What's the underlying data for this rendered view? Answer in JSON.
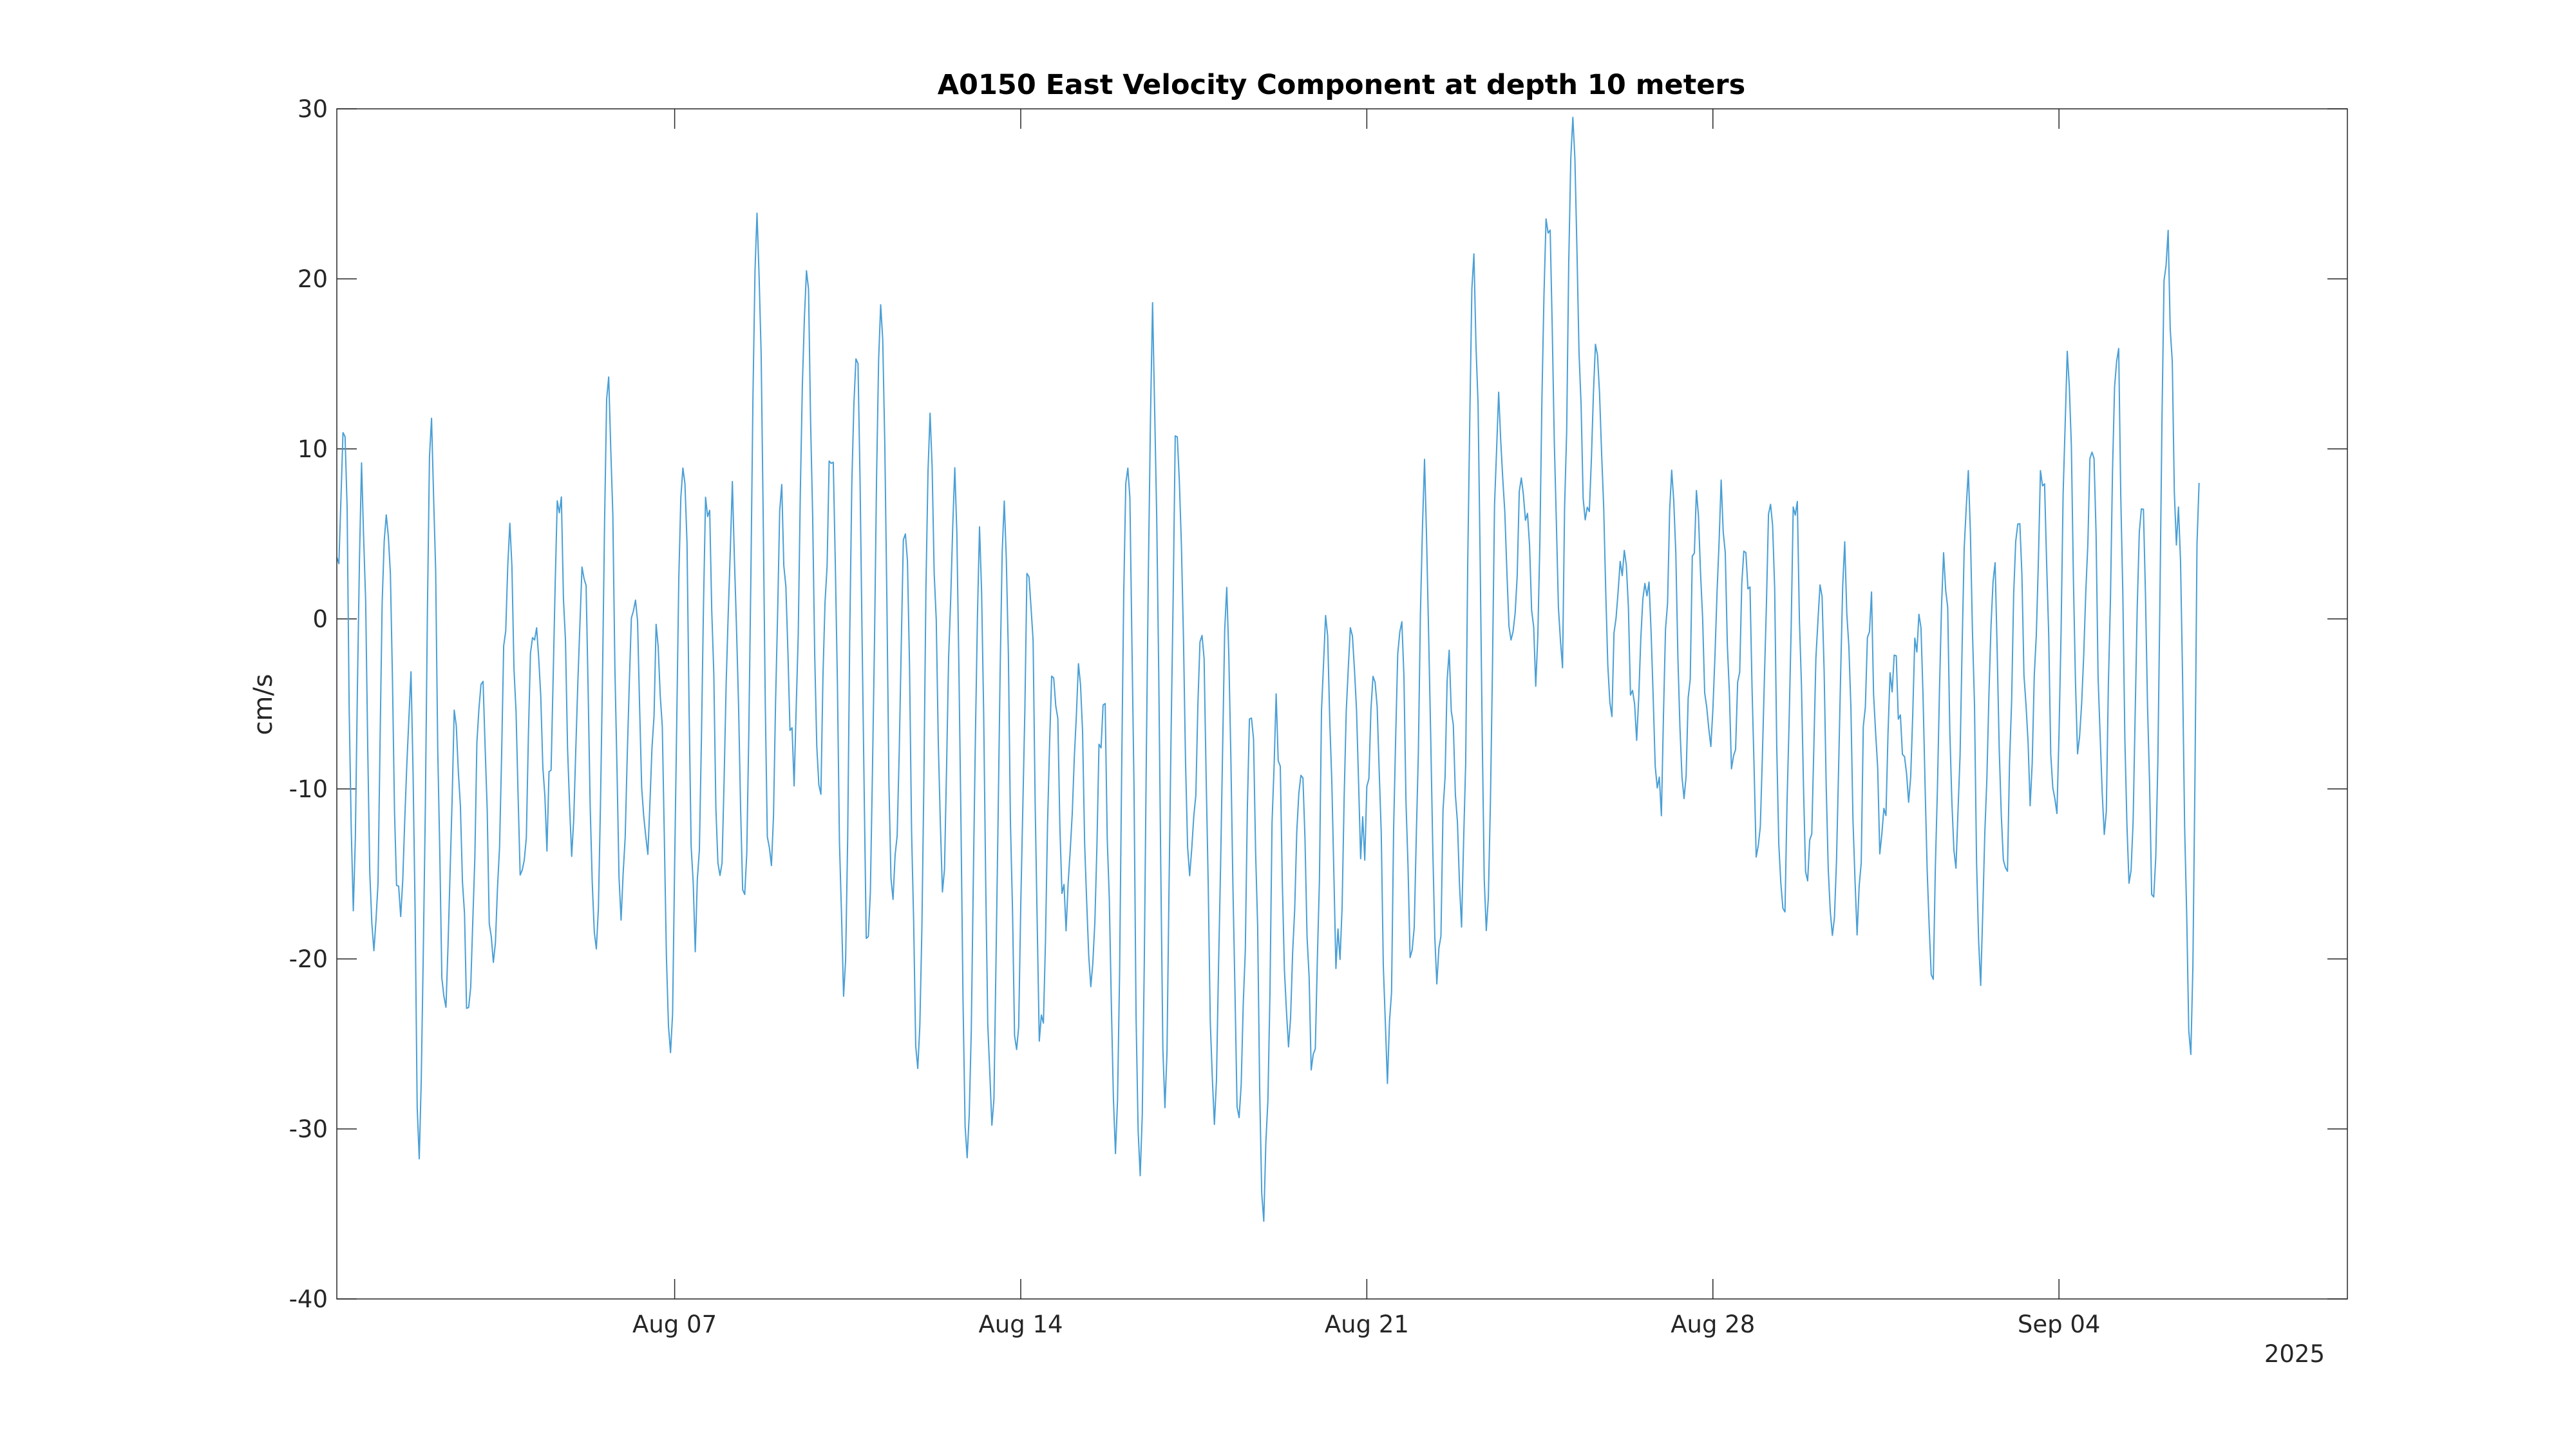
{
  "chart_data": {
    "type": "line",
    "title": "A0150 East Velocity Component at depth 10 meters",
    "xlabel": "",
    "ylabel": "cm/s",
    "x_range": [
      "2025-07-31T04:00",
      "2025-09-09T20:00"
    ],
    "ylim": [
      -40,
      30
    ],
    "y_ticks": [
      30,
      20,
      10,
      0,
      -10,
      -20,
      -30,
      -40
    ],
    "x_ticks": [
      {
        "date": "2025-08-07",
        "label": "Aug 07"
      },
      {
        "date": "2025-08-14",
        "label": "Aug 14"
      },
      {
        "date": "2025-08-21",
        "label": "Aug 21"
      },
      {
        "date": "2025-08-28",
        "label": "Aug 28"
      },
      {
        "date": "2025-09-04",
        "label": "Sep 04"
      }
    ],
    "x_year_label": "2025",
    "grid": false,
    "line_color": "#4a9fd6",
    "series": [
      {
        "name": "",
        "sampling": "hourly",
        "start": "2025-07-31T04:00",
        "keypoints": [
          [
            "2025-07-31T04:00",
            3
          ],
          [
            "2025-07-31T08:00",
            10
          ],
          [
            "2025-07-31T12:00",
            -18
          ],
          [
            "2025-07-31T16:00",
            8
          ],
          [
            "2025-07-31T22:00",
            -21
          ],
          [
            "2025-08-01T04:00",
            7
          ],
          [
            "2025-08-01T10:00",
            -17
          ],
          [
            "2025-08-01T16:00",
            -5
          ],
          [
            "2025-08-01T20:00",
            -31.5
          ],
          [
            "2025-08-02T02:00",
            11
          ],
          [
            "2025-08-02T08:00",
            -23
          ],
          [
            "2025-08-02T14:00",
            -6
          ],
          [
            "2025-08-02T20:00",
            -22
          ],
          [
            "2025-08-03T02:00",
            -4
          ],
          [
            "2025-08-03T08:00",
            -20
          ],
          [
            "2025-08-03T16:00",
            4
          ],
          [
            "2025-08-03T22:00",
            -16
          ],
          [
            "2025-08-04T04:00",
            0
          ],
          [
            "2025-08-04T10:00",
            -12
          ],
          [
            "2025-08-04T16:00",
            7
          ],
          [
            "2025-08-04T22:00",
            -12
          ],
          [
            "2025-08-05T04:00",
            2
          ],
          [
            "2025-08-05T10:00",
            -20
          ],
          [
            "2025-08-05T16:00",
            13.5
          ],
          [
            "2025-08-05T22:00",
            -17
          ],
          [
            "2025-08-06T04:00",
            2
          ],
          [
            "2025-08-06T10:00",
            -14
          ],
          [
            "2025-08-06T16:00",
            -1
          ],
          [
            "2025-08-06T22:00",
            -24
          ],
          [
            "2025-08-07T04:00",
            10
          ],
          [
            "2025-08-07T10:00",
            -19
          ],
          [
            "2025-08-07T16:00",
            7
          ],
          [
            "2025-08-07T22:00",
            -16
          ],
          [
            "2025-08-08T04:00",
            7
          ],
          [
            "2025-08-08T10:00",
            -17
          ],
          [
            "2025-08-08T16:00",
            23.5
          ],
          [
            "2025-08-08T22:00",
            -15
          ],
          [
            "2025-08-09T04:00",
            6
          ],
          [
            "2025-08-09T10:00",
            -9
          ],
          [
            "2025-08-09T16:00",
            19.8
          ],
          [
            "2025-08-09T22:00",
            -10
          ],
          [
            "2025-08-10T04:00",
            10
          ],
          [
            "2025-08-10T10:00",
            -21
          ],
          [
            "2025-08-10T16:00",
            16
          ],
          [
            "2025-08-10T22:00",
            -20
          ],
          [
            "2025-08-11T04:00",
            19.5
          ],
          [
            "2025-08-11T10:00",
            -17
          ],
          [
            "2025-08-11T16:00",
            5
          ],
          [
            "2025-08-11T22:00",
            -27
          ],
          [
            "2025-08-12T04:00",
            11
          ],
          [
            "2025-08-12T10:00",
            -15
          ],
          [
            "2025-08-12T16:00",
            7
          ],
          [
            "2025-08-12T22:00",
            -32.5
          ],
          [
            "2025-08-13T04:00",
            4
          ],
          [
            "2025-08-13T10:00",
            -31
          ],
          [
            "2025-08-13T16:00",
            5
          ],
          [
            "2025-08-13T22:00",
            -26
          ],
          [
            "2025-08-14T04:00",
            4
          ],
          [
            "2025-08-14T10:00",
            -25
          ],
          [
            "2025-08-14T16:00",
            -3
          ],
          [
            "2025-08-14T22:00",
            -18
          ],
          [
            "2025-08-15T04:00",
            -3
          ],
          [
            "2025-08-15T10:00",
            -20
          ],
          [
            "2025-08-15T16:00",
            -5
          ],
          [
            "2025-08-15T22:00",
            -29.5
          ],
          [
            "2025-08-16T04:00",
            10
          ],
          [
            "2025-08-16T10:00",
            -32
          ],
          [
            "2025-08-16T16:00",
            17
          ],
          [
            "2025-08-16T22:00",
            -27
          ],
          [
            "2025-08-17T04:00",
            11.5
          ],
          [
            "2025-08-17T10:00",
            -15
          ],
          [
            "2025-08-17T16:00",
            -2
          ],
          [
            "2025-08-17T22:00",
            -29
          ],
          [
            "2025-08-18T04:00",
            0
          ],
          [
            "2025-08-18T10:00",
            -31
          ],
          [
            "2025-08-18T16:00",
            -5
          ],
          [
            "2025-08-18T22:00",
            -34
          ],
          [
            "2025-08-19T04:00",
            -6
          ],
          [
            "2025-08-19T10:00",
            -24
          ],
          [
            "2025-08-19T16:00",
            -10
          ],
          [
            "2025-08-19T22:00",
            -26
          ],
          [
            "2025-08-20T04:00",
            -1
          ],
          [
            "2025-08-20T10:00",
            -20
          ],
          [
            "2025-08-20T16:00",
            0
          ],
          [
            "2025-08-20T22:00",
            -13
          ],
          [
            "2025-08-21T04:00",
            -2
          ],
          [
            "2025-08-21T10:00",
            -27
          ],
          [
            "2025-08-21T16:00",
            0
          ],
          [
            "2025-08-21T22:00",
            -20
          ],
          [
            "2025-08-22T04:00",
            8
          ],
          [
            "2025-08-22T10:00",
            -22
          ],
          [
            "2025-08-22T16:00",
            -3
          ],
          [
            "2025-08-22T22:00",
            -17
          ],
          [
            "2025-08-23T04:00",
            20.5
          ],
          [
            "2025-08-23T10:00",
            -17
          ],
          [
            "2025-08-23T16:00",
            12.5
          ],
          [
            "2025-08-23T22:00",
            -1
          ],
          [
            "2025-08-24T04:00",
            8
          ],
          [
            "2025-08-24T10:00",
            -2
          ],
          [
            "2025-08-24T16:00",
            24
          ],
          [
            "2025-08-24T22:00",
            -3
          ],
          [
            "2025-08-25T04:00",
            28
          ],
          [
            "2025-08-25T10:00",
            5
          ],
          [
            "2025-08-25T16:00",
            15
          ],
          [
            "2025-08-25T22:00",
            -5
          ],
          [
            "2025-08-26T04:00",
            4
          ],
          [
            "2025-08-26T10:00",
            -6
          ],
          [
            "2025-08-26T16:00",
            3
          ],
          [
            "2025-08-26T22:00",
            -11
          ],
          [
            "2025-08-27T04:00",
            7
          ],
          [
            "2025-08-27T10:00",
            -10
          ],
          [
            "2025-08-27T16:00",
            6
          ],
          [
            "2025-08-27T22:00",
            -8
          ],
          [
            "2025-08-28T04:00",
            7
          ],
          [
            "2025-08-28T10:00",
            -9
          ],
          [
            "2025-08-28T16:00",
            5
          ],
          [
            "2025-08-28T22:00",
            -15
          ],
          [
            "2025-08-29T04:00",
            6
          ],
          [
            "2025-08-29T10:00",
            -17
          ],
          [
            "2025-08-29T16:00",
            7
          ],
          [
            "2025-08-29T22:00",
            -15
          ],
          [
            "2025-08-30T04:00",
            2
          ],
          [
            "2025-08-30T10:00",
            -19
          ],
          [
            "2025-08-30T16:00",
            3
          ],
          [
            "2025-08-30T22:00",
            -17
          ],
          [
            "2025-08-31T04:00",
            1
          ],
          [
            "2025-08-31T10:00",
            -13
          ],
          [
            "2025-08-31T16:00",
            -2
          ],
          [
            "2025-08-31T22:00",
            -10
          ],
          [
            "2025-09-01T04:00",
            0
          ],
          [
            "2025-09-01T10:00",
            -21
          ],
          [
            "2025-09-01T16:00",
            4
          ],
          [
            "2025-09-01T22:00",
            -13
          ],
          [
            "2025-09-02T04:00",
            8
          ],
          [
            "2025-09-02T10:00",
            -20
          ],
          [
            "2025-09-02T16:00",
            3
          ],
          [
            "2025-09-02T22:00",
            -16
          ],
          [
            "2025-09-03T04:00",
            7
          ],
          [
            "2025-09-03T10:00",
            -10
          ],
          [
            "2025-09-03T16:00",
            9
          ],
          [
            "2025-09-03T22:00",
            -12
          ],
          [
            "2025-09-04T04:00",
            14
          ],
          [
            "2025-09-04T10:00",
            -8
          ],
          [
            "2025-09-04T16:00",
            10
          ],
          [
            "2025-09-04T22:00",
            -13
          ],
          [
            "2025-09-05T04:00",
            17
          ],
          [
            "2025-09-05T10:00",
            -16
          ],
          [
            "2025-09-05T16:00",
            8
          ],
          [
            "2025-09-05T22:00",
            -17
          ],
          [
            "2025-09-06T04:00",
            22.5
          ],
          [
            "2025-09-06T10:00",
            5
          ],
          [
            "2025-09-06T16:00",
            -27.5
          ],
          [
            "2025-09-06T20:00",
            8
          ]
        ]
      }
    ]
  }
}
